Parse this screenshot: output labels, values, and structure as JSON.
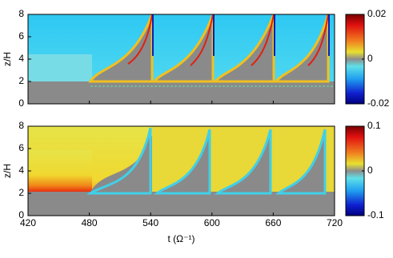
{
  "chart_data": [
    {
      "type": "heatmap",
      "ylabel": "z/H",
      "xlim": [
        420,
        720
      ],
      "xticks": [
        420,
        480,
        540,
        600,
        660,
        720
      ],
      "ylim": [
        0,
        8
      ],
      "yticks": [
        0,
        2,
        4,
        6,
        8
      ],
      "clim": [
        -0.02,
        0.02
      ],
      "cticks": [
        0.02,
        0,
        -0.02
      ]
    },
    {
      "type": "heatmap",
      "ylabel": "z/H",
      "xlabel": "t (Ω⁻¹)",
      "xlim": [
        420,
        720
      ],
      "xticks": [
        420,
        480,
        540,
        600,
        660,
        720
      ],
      "ylim": [
        0,
        8
      ],
      "yticks": [
        0,
        2,
        4,
        6,
        8
      ],
      "clim": [
        -0.1,
        0.1
      ],
      "cticks": [
        0.1,
        0,
        -0.1
      ]
    }
  ]
}
